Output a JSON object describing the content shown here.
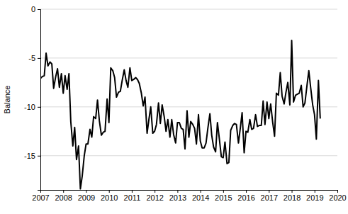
{
  "chart_data": {
    "type": "line",
    "y_label": "Balance",
    "color": "#000000",
    "grid": true,
    "xlim": [
      2007,
      2020
    ],
    "xticks": [
      2007,
      2008,
      2009,
      2010,
      2011,
      2012,
      2013,
      2014,
      2015,
      2016,
      2017,
      2018,
      2019,
      2020
    ],
    "ylim": [
      -18.5,
      0
    ],
    "yticks": [
      0,
      -5,
      -10,
      -15
    ],
    "x": [
      2007.0,
      2007.08,
      2007.17,
      2007.25,
      2007.33,
      2007.42,
      2007.5,
      2007.58,
      2007.67,
      2007.75,
      2007.83,
      2007.92,
      2008.0,
      2008.08,
      2008.17,
      2008.25,
      2008.33,
      2008.42,
      2008.5,
      2008.58,
      2008.67,
      2008.75,
      2008.83,
      2008.92,
      2009.0,
      2009.08,
      2009.17,
      2009.25,
      2009.33,
      2009.42,
      2009.5,
      2009.58,
      2009.67,
      2009.75,
      2009.83,
      2009.92,
      2010.0,
      2010.08,
      2010.17,
      2010.25,
      2010.33,
      2010.42,
      2010.5,
      2010.58,
      2010.67,
      2010.75,
      2010.83,
      2010.92,
      2011.0,
      2011.08,
      2011.17,
      2011.25,
      2011.33,
      2011.42,
      2011.5,
      2011.58,
      2011.67,
      2011.75,
      2011.83,
      2011.92,
      2012.0,
      2012.08,
      2012.17,
      2012.25,
      2012.33,
      2012.42,
      2012.5,
      2012.58,
      2012.67,
      2012.75,
      2012.83,
      2012.92,
      2013.0,
      2013.08,
      2013.17,
      2013.25,
      2013.33,
      2013.42,
      2013.5,
      2013.58,
      2013.67,
      2013.75,
      2013.83,
      2013.92,
      2014.0,
      2014.08,
      2014.17,
      2014.25,
      2014.33,
      2014.42,
      2014.5,
      2014.58,
      2014.67,
      2014.75,
      2014.83,
      2014.92,
      2015.0,
      2015.08,
      2015.17,
      2015.25,
      2015.33,
      2015.42,
      2015.5,
      2015.58,
      2015.67,
      2015.75,
      2015.83,
      2015.92,
      2016.0,
      2016.08,
      2016.17,
      2016.25,
      2016.33,
      2016.42,
      2016.5,
      2016.58,
      2016.67,
      2016.75,
      2016.83,
      2016.92,
      2017.0,
      2017.08,
      2017.17,
      2017.25,
      2017.33,
      2017.42,
      2017.5,
      2017.58,
      2017.67,
      2017.75,
      2017.83,
      2017.92,
      2018.0,
      2018.08,
      2018.17,
      2018.25,
      2018.33,
      2018.42,
      2018.5,
      2018.58,
      2018.67,
      2018.75,
      2018.83,
      2018.92,
      2019.0,
      2019.08,
      2019.17,
      2019.25
    ],
    "values": [
      -7.1,
      -6.9,
      -6.8,
      -4.5,
      -5.8,
      -5.4,
      -5.6,
      -8.1,
      -6.9,
      -6.1,
      -8.0,
      -6.6,
      -8.6,
      -6.8,
      -8.2,
      -6.6,
      -11.5,
      -14.0,
      -12.1,
      -15.4,
      -14.0,
      -18.4,
      -17.1,
      -15.0,
      -13.8,
      -13.8,
      -12.3,
      -13.1,
      -11.0,
      -11.2,
      -9.3,
      -11.4,
      -12.9,
      -12.6,
      -12.5,
      -9.2,
      -11.6,
      -6.0,
      -6.3,
      -7.0,
      -9.0,
      -8.5,
      -8.4,
      -7.3,
      -6.2,
      -7.3,
      -8.0,
      -6.0,
      -7.3,
      -7.2,
      -7.0,
      -7.2,
      -7.6,
      -8.6,
      -9.9,
      -9.0,
      -12.7,
      -11.3,
      -10.0,
      -12.7,
      -12.5,
      -11.8,
      -9.6,
      -11.7,
      -9.8,
      -11.0,
      -12.5,
      -11.3,
      -13.1,
      -11.3,
      -12.8,
      -13.7,
      -11.6,
      -11.6,
      -12.2,
      -12.3,
      -14.3,
      -10.4,
      -13.1,
      -11.5,
      -11.8,
      -12.2,
      -13.8,
      -10.8,
      -13.5,
      -14.2,
      -14.2,
      -13.7,
      -12.2,
      -10.7,
      -12.9,
      -14.1,
      -14.6,
      -11.6,
      -13.2,
      -15.1,
      -15.2,
      -13.6,
      -15.8,
      -15.7,
      -12.4,
      -11.9,
      -11.7,
      -11.8,
      -13.7,
      -12.2,
      -10.6,
      -14.7,
      -12.5,
      -12.6,
      -11.3,
      -12.3,
      -12.2,
      -10.8,
      -12.0,
      -11.9,
      -11.9,
      -9.4,
      -11.8,
      -9.5,
      -11.2,
      -9.7,
      -11.6,
      -13.0,
      -8.6,
      -8.8,
      -6.5,
      -8.9,
      -9.7,
      -8.5,
      -7.5,
      -9.8,
      -3.2,
      -9.5,
      -8.8,
      -8.7,
      -8.6,
      -7.8,
      -10.0,
      -9.6,
      -7.8,
      -6.3,
      -8.0,
      -9.8,
      -10.8,
      -13.3,
      -7.3,
      -11.2
    ]
  }
}
